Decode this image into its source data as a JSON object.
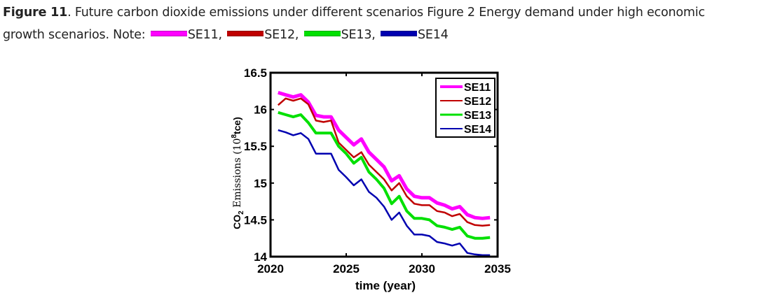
{
  "caption": {
    "figure_label": "Figure 11",
    "text_line1": ". Future carbon dioxide emissions under different scenarios Figure 2 Energy demand under high economic",
    "text_line2_prefix": "growth scenarios. Note: ",
    "notes": [
      {
        "label": "SE11,",
        "color": "#ff00ff"
      },
      {
        "label": "SE12,",
        "color": "#c00000"
      },
      {
        "label": "SE13,",
        "color": "#00e000"
      },
      {
        "label": "SE14",
        "color": "#0000b0"
      }
    ]
  },
  "chart_data": {
    "type": "line",
    "title": "",
    "xlabel": "time (year)",
    "ylabel_main": "CO",
    "ylabel_sub": "2",
    "ylabel_rest": " Emissions (10",
    "ylabel_sup": "8",
    "ylabel_end": "tce)",
    "xlim": [
      2020,
      2035
    ],
    "ylim": [
      14,
      16.5
    ],
    "xticks": [
      2020,
      2025,
      2030,
      2035
    ],
    "xtick_labels": [
      "2020",
      "2025",
      "2030",
      "2035"
    ],
    "yticks": [
      14,
      14.5,
      15,
      15.5,
      16,
      16.5
    ],
    "ytick_labels": [
      "14",
      "14.5",
      "15",
      "15.5",
      "16",
      "16.5"
    ],
    "grid": false,
    "legend_position": "top-right",
    "x": [
      2020.5,
      2021,
      2021.5,
      2022,
      2022.5,
      2023,
      2023.5,
      2024,
      2024.5,
      2025,
      2025.5,
      2026,
      2026.5,
      2027,
      2027.5,
      2028,
      2028.5,
      2029,
      2029.5,
      2030,
      2030.5,
      2031,
      2031.5,
      2032,
      2032.5,
      2033,
      2033.5,
      2034,
      2034.5
    ],
    "series": [
      {
        "name": "SE11",
        "color": "#ff00ff",
        "width": 5,
        "values": [
          16.23,
          16.2,
          16.17,
          16.2,
          16.1,
          15.92,
          15.9,
          15.9,
          15.72,
          15.62,
          15.52,
          15.6,
          15.42,
          15.32,
          15.22,
          15.03,
          15.1,
          14.92,
          14.82,
          14.8,
          14.8,
          14.73,
          14.7,
          14.65,
          14.68,
          14.57,
          14.53,
          14.52,
          14.53
        ]
      },
      {
        "name": "SE12",
        "color": "#c00000",
        "width": 2.5,
        "values": [
          16.06,
          16.15,
          16.12,
          16.15,
          16.07,
          15.85,
          15.83,
          15.85,
          15.55,
          15.45,
          15.35,
          15.42,
          15.25,
          15.15,
          15.05,
          14.9,
          15.0,
          14.82,
          14.72,
          14.7,
          14.7,
          14.62,
          14.6,
          14.55,
          14.58,
          14.47,
          14.43,
          14.42,
          14.43
        ]
      },
      {
        "name": "SE13",
        "color": "#00e000",
        "width": 4,
        "values": [
          15.96,
          15.93,
          15.9,
          15.93,
          15.82,
          15.68,
          15.68,
          15.68,
          15.5,
          15.4,
          15.27,
          15.35,
          15.15,
          15.05,
          14.93,
          14.72,
          14.82,
          14.62,
          14.52,
          14.52,
          14.5,
          14.42,
          14.4,
          14.37,
          14.4,
          14.28,
          14.25,
          14.25,
          14.26
        ]
      },
      {
        "name": "SE14",
        "color": "#0000b0",
        "width": 2.5,
        "values": [
          15.72,
          15.69,
          15.65,
          15.68,
          15.6,
          15.4,
          15.4,
          15.4,
          15.18,
          15.08,
          14.97,
          15.05,
          14.88,
          14.8,
          14.68,
          14.5,
          14.6,
          14.42,
          14.3,
          14.3,
          14.28,
          14.2,
          14.18,
          14.15,
          14.18,
          14.05,
          14.03,
          14.02,
          14.02
        ]
      }
    ]
  }
}
